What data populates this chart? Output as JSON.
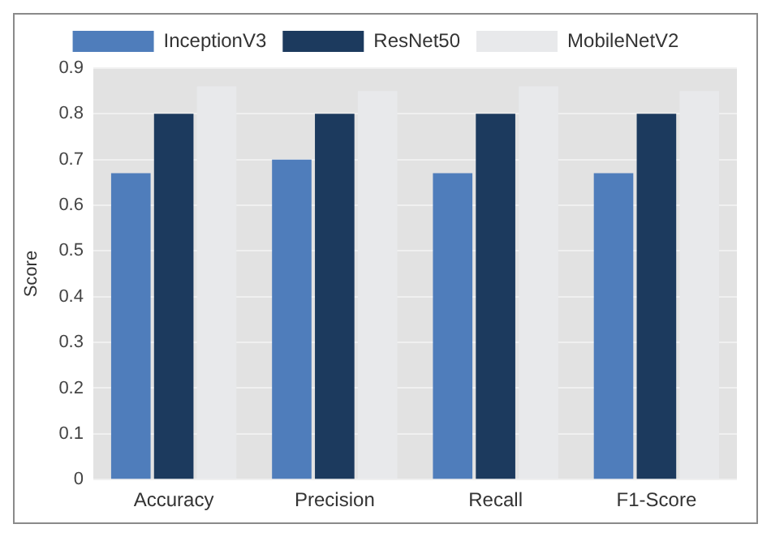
{
  "chart_data": {
    "type": "bar",
    "ylabel": "Score",
    "categories": [
      "Accuracy",
      "Precision",
      "Recall",
      "F1-Score"
    ],
    "series": [
      {
        "name": "InceptionV3",
        "color": "#4f7dbb",
        "values": [
          0.67,
          0.7,
          0.67,
          0.67
        ]
      },
      {
        "name": "ResNet50",
        "color": "#1c3a5e",
        "values": [
          0.8,
          0.8,
          0.8,
          0.8
        ]
      },
      {
        "name": "MobileNetV2",
        "color": "#e8e9eb",
        "values": [
          0.86,
          0.85,
          0.86,
          0.85
        ]
      }
    ],
    "ylim": [
      0,
      0.9
    ],
    "yticks": [
      0,
      0.1,
      0.2,
      0.3,
      0.4,
      0.5,
      0.6,
      0.7,
      0.8,
      0.9
    ],
    "grid": "y",
    "legend": "top"
  }
}
